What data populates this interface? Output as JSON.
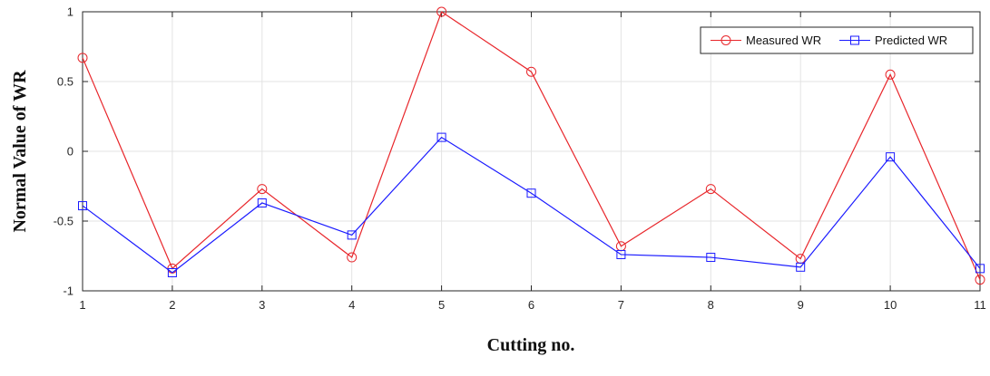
{
  "chart_data": {
    "type": "line",
    "title": "",
    "xlabel": "Cutting no.",
    "ylabel": "Normal Value of WR",
    "x": [
      1,
      2,
      3,
      4,
      5,
      6,
      7,
      8,
      9,
      10,
      11
    ],
    "xticks": [
      "1",
      "2",
      "3",
      "4",
      "5",
      "6",
      "7",
      "8",
      "9",
      "10",
      "11"
    ],
    "yticks": [
      "-1",
      "-0.5",
      "0",
      "0.5",
      "1"
    ],
    "xlim": [
      1,
      11
    ],
    "ylim": [
      -1,
      1
    ],
    "grid": true,
    "legend_position": "top-right",
    "series": [
      {
        "name": "Measured WR",
        "color": "#e8262b",
        "marker": "circle",
        "values": [
          0.67,
          -0.84,
          -0.27,
          -0.76,
          1.0,
          0.57,
          -0.68,
          -0.27,
          -0.77,
          0.55,
          -0.92
        ]
      },
      {
        "name": "Predicted WR",
        "color": "#1a1aff",
        "marker": "square",
        "values": [
          -0.39,
          -0.87,
          -0.37,
          -0.6,
          0.1,
          -0.3,
          -0.74,
          -0.76,
          -0.83,
          -0.04,
          -0.84
        ]
      }
    ]
  }
}
